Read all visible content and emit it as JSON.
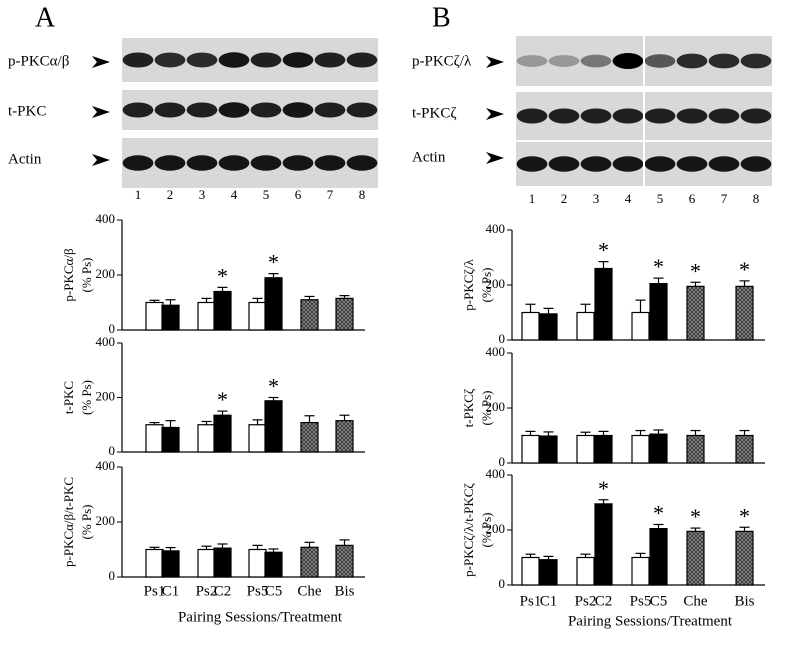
{
  "panels": [
    {
      "label": "A",
      "blots": [
        "p-PKCα/β",
        "t-PKC",
        "Actin"
      ],
      "lanes": [
        "1",
        "2",
        "3",
        "4",
        "5",
        "6",
        "7",
        "8"
      ]
    },
    {
      "label": "B",
      "blots": [
        "p-PKCζ/λ",
        "t-PKCζ",
        "Actin"
      ],
      "lanes": [
        "1",
        "2",
        "3",
        "4",
        "5",
        "6",
        "7",
        "8"
      ]
    }
  ],
  "chart_data": [
    {
      "type": "bar",
      "ylabel": [
        "p-PKCα/β",
        "(% Ps)"
      ],
      "categories": [
        null,
        null,
        null,
        null,
        null,
        null,
        null,
        null
      ],
      "values": [
        100,
        90,
        100,
        140,
        100,
        190,
        110,
        115
      ],
      "errors": [
        8,
        20,
        15,
        15,
        15,
        15,
        12,
        10
      ],
      "annotations": [
        null,
        null,
        null,
        "*",
        null,
        "*",
        null,
        null
      ],
      "colors": [
        "#ffffff",
        "#000000",
        "#ffffff",
        "#000000",
        "#ffffff",
        "#000000",
        "#8c8c8c",
        "#8c8c8c"
      ],
      "ylim": [
        0,
        400
      ],
      "yticks": [
        0,
        200,
        400
      ]
    },
    {
      "type": "bar",
      "ylabel": [
        "t-PKC",
        "(% Ps)"
      ],
      "categories": [
        null,
        null,
        null,
        null,
        null,
        null,
        null,
        null
      ],
      "values": [
        100,
        90,
        100,
        135,
        100,
        188,
        108,
        115
      ],
      "errors": [
        8,
        25,
        12,
        15,
        18,
        12,
        25,
        20
      ],
      "annotations": [
        null,
        null,
        null,
        "*",
        null,
        "*",
        null,
        null
      ],
      "colors": [
        "#ffffff",
        "#000000",
        "#ffffff",
        "#000000",
        "#ffffff",
        "#000000",
        "#8c8c8c",
        "#8c8c8c"
      ],
      "ylim": [
        0,
        400
      ],
      "yticks": [
        0,
        200,
        400
      ]
    },
    {
      "type": "bar",
      "ylabel": [
        "p-PKCα/β/t-PKC",
        "(% Ps)"
      ],
      "categories": [
        "Ps1",
        "C1",
        "Ps2",
        "C2",
        "Ps5",
        "C5",
        "Che",
        "Bis"
      ],
      "xlabel": "Pairing Sessions/Treatment",
      "values": [
        100,
        95,
        100,
        105,
        100,
        90,
        108,
        115
      ],
      "errors": [
        8,
        12,
        12,
        15,
        15,
        12,
        18,
        20
      ],
      "annotations": [
        null,
        null,
        null,
        null,
        null,
        null,
        null,
        null
      ],
      "colors": [
        "#ffffff",
        "#000000",
        "#ffffff",
        "#000000",
        "#ffffff",
        "#000000",
        "#8c8c8c",
        "#8c8c8c"
      ],
      "ylim": [
        0,
        400
      ],
      "yticks": [
        0,
        200,
        400
      ]
    },
    {
      "type": "bar",
      "ylabel": [
        "p-PKCζ/λ",
        "(% Ps)"
      ],
      "categories": [
        null,
        null,
        null,
        null,
        null,
        null,
        null,
        null
      ],
      "values": [
        100,
        95,
        100,
        260,
        100,
        205,
        195,
        195
      ],
      "errors": [
        30,
        20,
        30,
        25,
        45,
        20,
        15,
        20
      ],
      "annotations": [
        null,
        null,
        null,
        "*",
        null,
        "*",
        "*",
        "*"
      ],
      "colors": [
        "#ffffff",
        "#000000",
        "#ffffff",
        "#000000",
        "#ffffff",
        "#000000",
        "#8c8c8c",
        "#8c8c8c"
      ],
      "ylim": [
        0,
        400
      ],
      "yticks": [
        0,
        200,
        400
      ]
    },
    {
      "type": "bar",
      "ylabel": [
        "t-PKCζ",
        "(% Ps)"
      ],
      "categories": [
        null,
        null,
        null,
        null,
        null,
        null,
        null,
        null
      ],
      "values": [
        100,
        98,
        100,
        100,
        100,
        105,
        100,
        100
      ],
      "errors": [
        15,
        15,
        12,
        15,
        18,
        15,
        18,
        18
      ],
      "annotations": [
        null,
        null,
        null,
        null,
        null,
        null,
        null,
        null
      ],
      "colors": [
        "#ffffff",
        "#000000",
        "#ffffff",
        "#000000",
        "#ffffff",
        "#000000",
        "#8c8c8c",
        "#8c8c8c"
      ],
      "ylim": [
        0,
        400
      ],
      "yticks": [
        0,
        200,
        400
      ]
    },
    {
      "type": "bar",
      "ylabel": [
        "p-PKCζ/λ/t-PKCζ",
        "(% Ps)"
      ],
      "categories": [
        "Ps1",
        "C1",
        "Ps2",
        "C2",
        "Ps5",
        "C5",
        "Che",
        "Bis"
      ],
      "xlabel": "Pairing Sessions/Treatment",
      "values": [
        100,
        92,
        100,
        295,
        100,
        205,
        195,
        195
      ],
      "errors": [
        12,
        12,
        12,
        15,
        15,
        15,
        12,
        15
      ],
      "annotations": [
        null,
        null,
        null,
        "*",
        null,
        "*",
        "*",
        "*"
      ],
      "colors": [
        "#ffffff",
        "#000000",
        "#ffffff",
        "#000000",
        "#ffffff",
        "#000000",
        "#8c8c8c",
        "#8c8c8c"
      ],
      "ylim": [
        0,
        400
      ],
      "yticks": [
        0,
        200,
        400
      ]
    }
  ]
}
